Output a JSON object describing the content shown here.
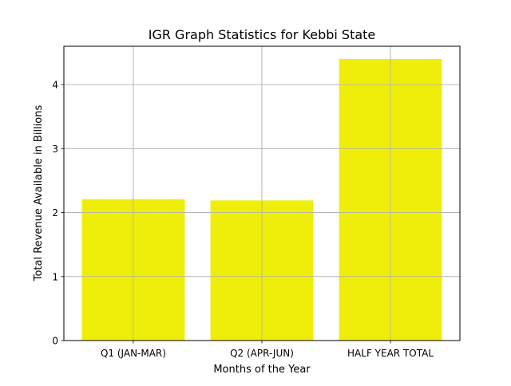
{
  "chart_data": {
    "type": "bar",
    "title": "IGR Graph Statistics for Kebbi State",
    "xlabel": "Months of the Year",
    "ylabel": "Total Revenue Available in Billions",
    "categories": [
      "Q1 (JAN-MAR)",
      "Q2 (APR-JUN)",
      "HALF YEAR TOTAL"
    ],
    "values": [
      2.21,
      2.19,
      4.4
    ],
    "ylim": [
      0,
      4.6
    ],
    "yticks": [
      0,
      1,
      2,
      3,
      4
    ],
    "grid": true,
    "bar_color": "#eeee0a",
    "grid_color": "#b0b0b0"
  }
}
